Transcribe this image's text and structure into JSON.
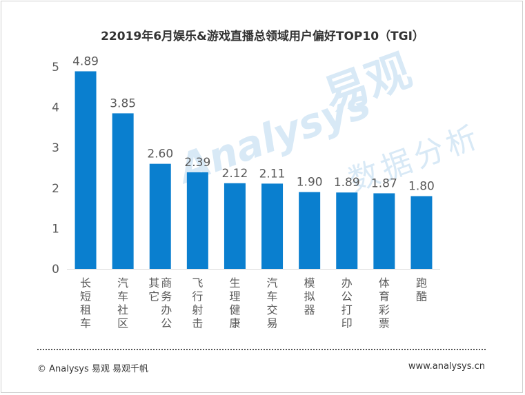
{
  "chart_data": {
    "type": "bar",
    "title": "22019年6月娱乐&游戏直播总领域用户偏好TOP10（TGI）",
    "categories": [
      "长短租车",
      "汽车社区",
      "商务办公其它",
      "飞行射击",
      "生理健康",
      "汽车交易",
      "模拟器",
      "办公打印",
      "体育彩票",
      "跑酷"
    ],
    "values": [
      4.89,
      3.85,
      2.6,
      2.39,
      2.12,
      2.11,
      1.9,
      1.89,
      1.87,
      1.8
    ],
    "value_labels": [
      "4.89",
      "3.85",
      "2.60",
      "2.39",
      "2.12",
      "2.11",
      "1.90",
      "1.89",
      "1.87",
      "1.80"
    ],
    "yticks": [
      "0",
      "1",
      "2",
      "3",
      "4",
      "5"
    ],
    "ylim": [
      0,
      5
    ],
    "grid": false,
    "bar_color": "#0a7fcf"
  },
  "watermark": {
    "brand": "Analysys",
    "cn_main": "易观",
    "cn_sub": "数据分析"
  },
  "footer": {
    "left": "© Analysys 易观 易观千帆",
    "right": "www.analysys.cn"
  }
}
